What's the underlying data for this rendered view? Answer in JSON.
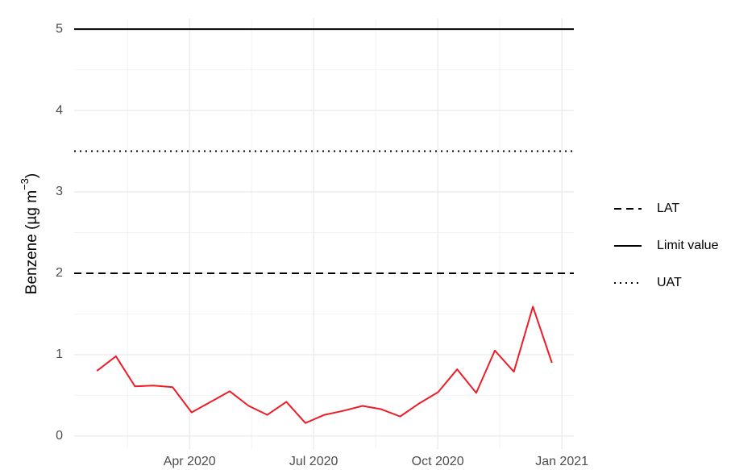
{
  "chart_data": {
    "type": "line",
    "y_label": [
      "Benzene (µg m",
      "−3",
      ")"
    ],
    "x": [
      1.76,
      2.22,
      2.68,
      3.13,
      3.59,
      4.05,
      4.51,
      4.97,
      5.43,
      5.88,
      6.34,
      6.8,
      7.26,
      7.72,
      8.18,
      8.63,
      9.09,
      9.55,
      10.01,
      10.47,
      10.93,
      11.38,
      11.84,
      12.3,
      12.76
    ],
    "series": [
      {
        "color": "#ee1c25",
        "values": [
          0.8,
          0.98,
          0.61,
          0.62,
          0.6,
          0.29,
          0.42,
          0.55,
          0.37,
          0.26,
          0.42,
          0.16,
          0.26,
          0.31,
          0.37,
          0.33,
          0.24,
          0.4,
          0.54,
          0.82,
          0.53,
          1.05,
          0.79,
          1.59,
          0.9
        ]
      }
    ],
    "reference_lines": [
      {
        "name": "LAT",
        "value": 2,
        "dash": "dashed"
      },
      {
        "name": "Limit value",
        "value": 5,
        "dash": "solid"
      },
      {
        "name": "UAT",
        "value": 3.5,
        "dash": "dotted"
      }
    ],
    "xlim": [
      1.21,
      13.29
    ],
    "xticks": [
      {
        "value": 4,
        "label": "Apr 2020"
      },
      {
        "value": 7,
        "label": "Jul 2020"
      },
      {
        "value": 10,
        "label": "Oct 2020"
      },
      {
        "value": 13,
        "label": "Jan 2021"
      }
    ],
    "ylim": [
      -0.16,
      5.13
    ],
    "yticks": [
      0,
      1,
      2,
      3,
      4,
      5
    ],
    "grid": true,
    "legend": "right"
  }
}
